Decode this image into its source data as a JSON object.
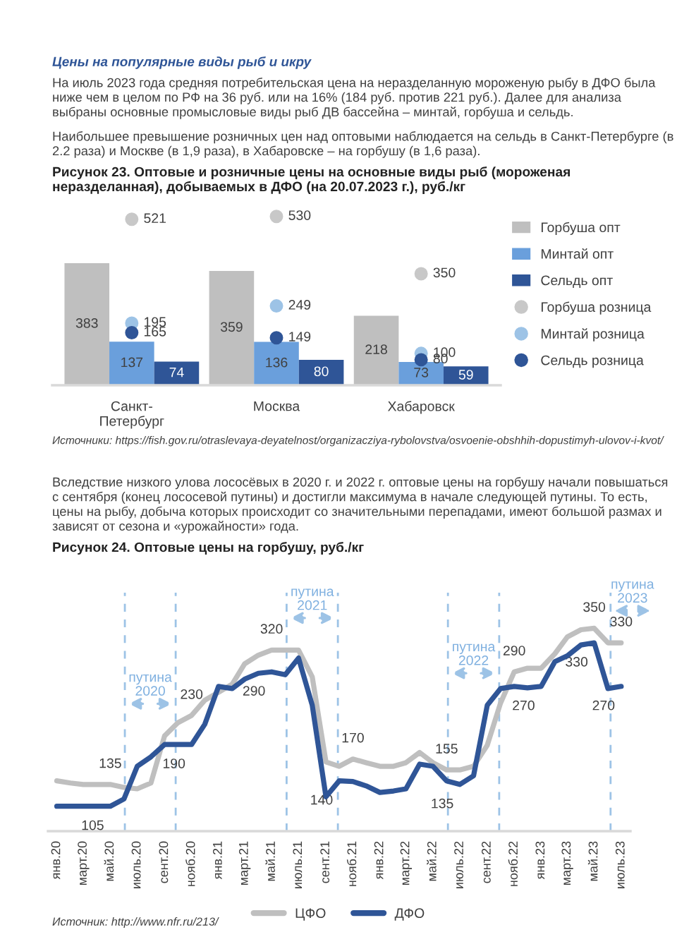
{
  "chart_data": [
    {
      "type": "bar",
      "title": "Рисунок 23. Оптовые и розничные цены на основные виды рыб (мороженая неразделанная), добываемых в ДФО (на 20.07.2023 г.), руб./кг",
      "categories": [
        "Санкт-Петербург",
        "Москва",
        "Хабаровск"
      ],
      "series": [
        {
          "name": "Горбуша опт",
          "color": "#bfbfbf",
          "values": [
            383,
            359,
            218
          ]
        },
        {
          "name": "Минтай опт",
          "color": "#6a9fdc",
          "values": [
            137,
            136,
            73
          ]
        },
        {
          "name": "Сельдь опт",
          "color": "#2f5597",
          "values": [
            74,
            80,
            59
          ]
        },
        {
          "name": "Горбуша розница",
          "type": "scatter",
          "marker": "circle",
          "color": "#c8c8c8",
          "values": [
            521,
            530,
            350
          ]
        },
        {
          "name": "Минтай розница",
          "type": "scatter",
          "marker": "circle",
          "color": "#9dc3e6",
          "values": [
            195,
            249,
            100
          ]
        },
        {
          "name": "Сельдь розница",
          "type": "scatter",
          "marker": "circle",
          "color": "#2f5597",
          "values": [
            165,
            149,
            80
          ]
        }
      ],
      "data_labels": true,
      "legend": "right",
      "tick_labels": "x",
      "annotations": [
        "Цены на популярные виды рыб и икру",
        "На июль 2023 года средняя потребительская цена на неразделанную мороженую рыбу в ДФО была ниже чем в целом по РФ на 36 руб. или на 16% (184 руб. против 221 руб.). Далее для анализа выбраны основные промысловые виды рыб ДВ бассейна – минтай, горбуша и сельдь.",
        "Наибольшее превышение розничных цен над оптовыми наблюдается на сельдь в Санкт-Петербурге (в 2.2 раза) и Москве (в 1,9 раза), в Хабаровске – на горбушу (в 1,6 раза).",
        "Источники: https://fish.gov.ru/otraslevaya-deyatelnost/organizacziya-rybolovstva/osvoenie-obshhih-dopustimyh-ulovov-i-kvot/"
      ]
    },
    {
      "type": "line",
      "title": "Рисунок 24. Оптовые цены на горбушу, руб./кг",
      "x": [
        "2020-01",
        "2020-02",
        "2020-03",
        "2020-04",
        "2020-05",
        "2020-06",
        "2020-07",
        "2020-08",
        "2020-09",
        "2020-10",
        "2020-11",
        "2020-12",
        "2021-01",
        "2021-02",
        "2021-03",
        "2021-04",
        "2021-05",
        "2021-06",
        "2021-07",
        "2021-08",
        "2021-09",
        "2021-10",
        "2021-11",
        "2021-12",
        "2022-01",
        "2022-02",
        "2022-03",
        "2022-04",
        "2022-05",
        "2022-06",
        "2022-07",
        "2022-08",
        "2022-09",
        "2022-10",
        "2022-11",
        "2022-12",
        "2023-01",
        "2023-02",
        "2023-03",
        "2023-04",
        "2023-05",
        "2023-06",
        "2023-07"
      ],
      "xlim": [
        "2019-12-12",
        "2023-07-22"
      ],
      "xticks": [
        {
          "value": "2020-01",
          "label": "янв.20"
        },
        {
          "value": "2020-03",
          "label": "март.20"
        },
        {
          "value": "2020-05",
          "label": "май.20"
        },
        {
          "value": "2020-07",
          "label": "июль.20"
        },
        {
          "value": "2020-09",
          "label": "сент.20"
        },
        {
          "value": "2020-11",
          "label": "нояб.20"
        },
        {
          "value": "2021-01",
          "label": "янв.21"
        },
        {
          "value": "2021-03",
          "label": "март.21"
        },
        {
          "value": "2021-05",
          "label": "май.21"
        },
        {
          "value": "2021-07",
          "label": "июль.21"
        },
        {
          "value": "2021-09",
          "label": "сент.21"
        },
        {
          "value": "2021-11",
          "label": "нояб.21"
        },
        {
          "value": "2022-01",
          "label": "янв.22"
        },
        {
          "value": "2022-03",
          "label": "март.22"
        },
        {
          "value": "2022-05",
          "label": "май.22"
        },
        {
          "value": "2022-07",
          "label": "июль.22"
        },
        {
          "value": "2022-09",
          "label": "сент.22"
        },
        {
          "value": "2022-11",
          "label": "нояб.22"
        },
        {
          "value": "2023-01",
          "label": "янв.23"
        },
        {
          "value": "2023-03",
          "label": "март.23"
        },
        {
          "value": "2023-05",
          "label": "май.23"
        },
        {
          "value": "2023-07",
          "label": "июль.23"
        }
      ],
      "series": [
        {
          "name": "ЦФО",
          "color": "#bfbfbf",
          "values": [
            140,
            137,
            135,
            135,
            135,
            131,
            129,
            137,
            202,
            220,
            230,
            251,
            262,
            273,
            301,
            313,
            320,
            320,
            320,
            283,
            166,
            160,
            170,
            165,
            160,
            160,
            165,
            179,
            165,
            155,
            155,
            160,
            189,
            247,
            290,
            295,
            295,
            315,
            338,
            348,
            350,
            330,
            330
          ],
          "value_labels": [
            null,
            null,
            null,
            null,
            "135",
            null,
            null,
            null,
            null,
            null,
            "230",
            null,
            null,
            null,
            null,
            null,
            "320",
            null,
            null,
            null,
            null,
            null,
            "170",
            null,
            null,
            null,
            null,
            null,
            null,
            "155",
            null,
            null,
            null,
            null,
            "290",
            null,
            null,
            null,
            null,
            null,
            "350",
            null,
            "330"
          ]
        },
        {
          "name": "ДФО",
          "color": "#2f5597",
          "values": [
            105,
            105,
            105,
            105,
            105,
            115,
            160,
            173,
            190,
            190,
            190,
            218,
            270,
            267,
            280,
            288,
            290,
            286,
            309,
            244,
            118,
            140,
            139,
            133,
            124,
            126,
            129,
            163,
            160,
            140,
            135,
            147,
            244,
            267,
            270,
            268,
            270,
            304,
            312,
            327,
            330,
            267,
            270
          ],
          "value_labels": [
            null,
            null,
            null,
            null,
            "105",
            null,
            null,
            null,
            null,
            null,
            "190",
            null,
            null,
            null,
            null,
            null,
            "290",
            null,
            null,
            null,
            null,
            "140",
            null,
            null,
            null,
            null,
            null,
            null,
            null,
            null,
            "135",
            null,
            null,
            null,
            null,
            null,
            "270",
            null,
            null,
            null,
            "330",
            null,
            "270"
          ]
        }
      ],
      "ref_lines": [
        {
          "axis": "x",
          "value": "2020-06-03",
          "label": "путина\n2020",
          "color": "#9dc3e6",
          "line_style": "dashed"
        },
        {
          "axis": "x",
          "value": "2020-09-26",
          "color": "#9dc3e6",
          "line_style": "dashed"
        },
        {
          "axis": "x",
          "value": "2021-06-04",
          "label": "путина\n2021",
          "color": "#9dc3e6",
          "line_style": "dashed"
        },
        {
          "axis": "x",
          "value": "2021-09-28",
          "color": "#9dc3e6",
          "line_style": "dashed"
        },
        {
          "axis": "x",
          "value": "2022-06-04",
          "label": "путина\n2022",
          "color": "#9dc3e6",
          "line_style": "dashed"
        },
        {
          "axis": "x",
          "value": "2022-09-28",
          "color": "#9dc3e6",
          "line_style": "dashed"
        },
        {
          "axis": "x",
          "value": "2023-06-07",
          "label": "путина\n2023",
          "color": "#9dc3e6",
          "line_style": "dashed"
        }
      ],
      "line_style": "solid",
      "legend": "bottom",
      "tick_labels": "x",
      "annotations": [
        "Вследствие низкого улова лососёвых в 2020 г. и 2022 г. оптовые цены на горбушу начали повышаться с сентября (конец лососевой путины) и достигли максимума в начале следующей путины. То есть, цены на рыбу, добыча которых происходит со значительными перепадами, имеют большой размах и зависят от сезона и «урожайности» года.",
        "Источник: http://www.nfr.ru/213/"
      ]
    }
  ]
}
